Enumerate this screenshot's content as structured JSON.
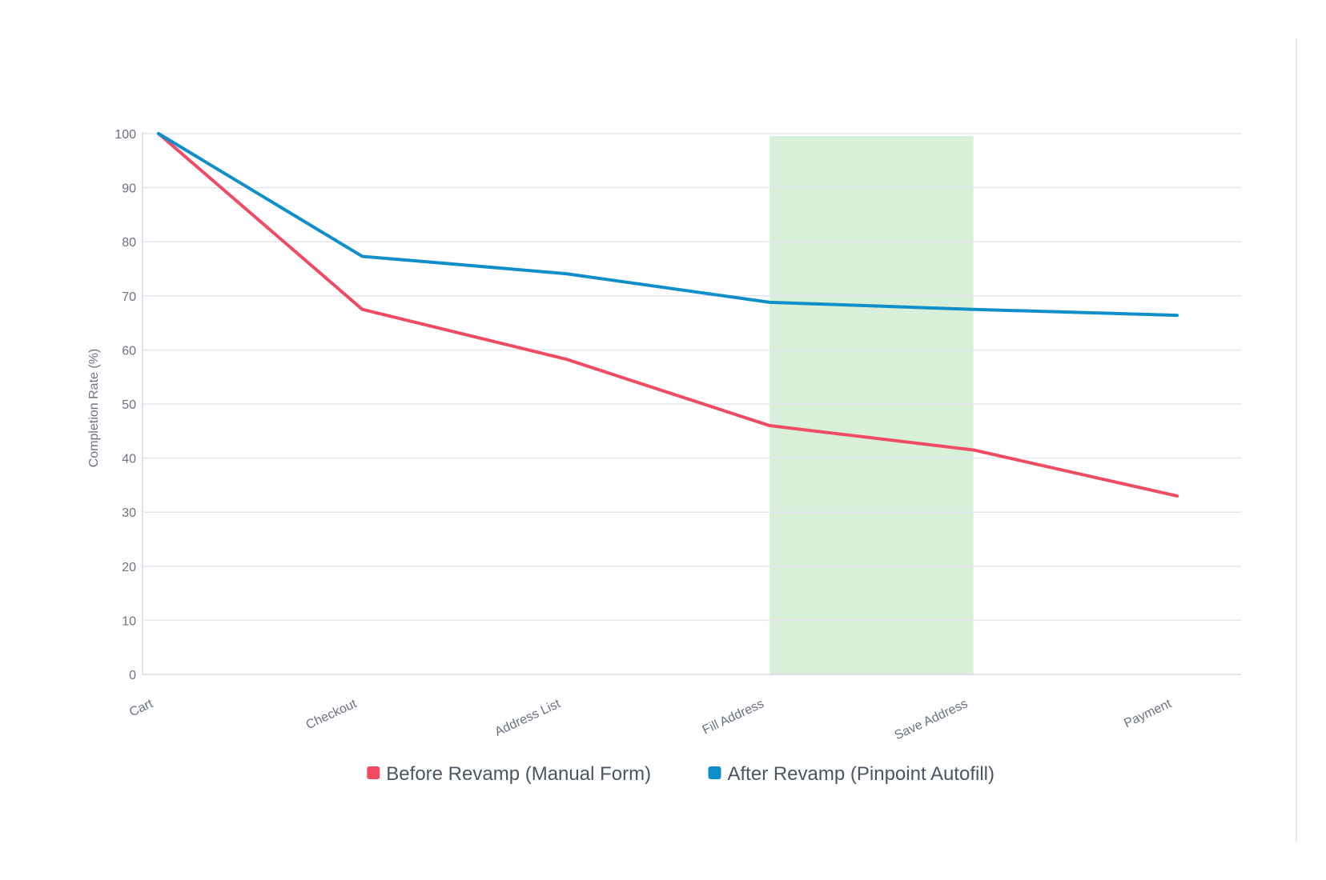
{
  "chart_data": {
    "type": "line",
    "title": "",
    "xlabel": "",
    "ylabel": "Completion Rate (%)",
    "ylim": [
      0,
      100
    ],
    "yticks": [
      0,
      10,
      20,
      30,
      40,
      50,
      60,
      70,
      80,
      90,
      100
    ],
    "categories": [
      "Cart",
      "Checkout",
      "Address List",
      "Fill Address",
      "Save Address",
      "Payment"
    ],
    "series": [
      {
        "name": "Before Revamp (Manual Form)",
        "color": "#ef4b63",
        "values": [
          100,
          67.5,
          58.3,
          46.0,
          41.5,
          33.0
        ]
      },
      {
        "name": "After Revamp (Pinpoint Autofill)",
        "color": "#0f8fc9",
        "values": [
          100,
          77.3,
          74.1,
          68.8,
          67.5,
          66.4
        ]
      }
    ],
    "highlight": {
      "from": "Fill Address",
      "to": "Save Address",
      "color": "#d8efd9"
    },
    "grid": true,
    "legend": "bottom-center"
  }
}
